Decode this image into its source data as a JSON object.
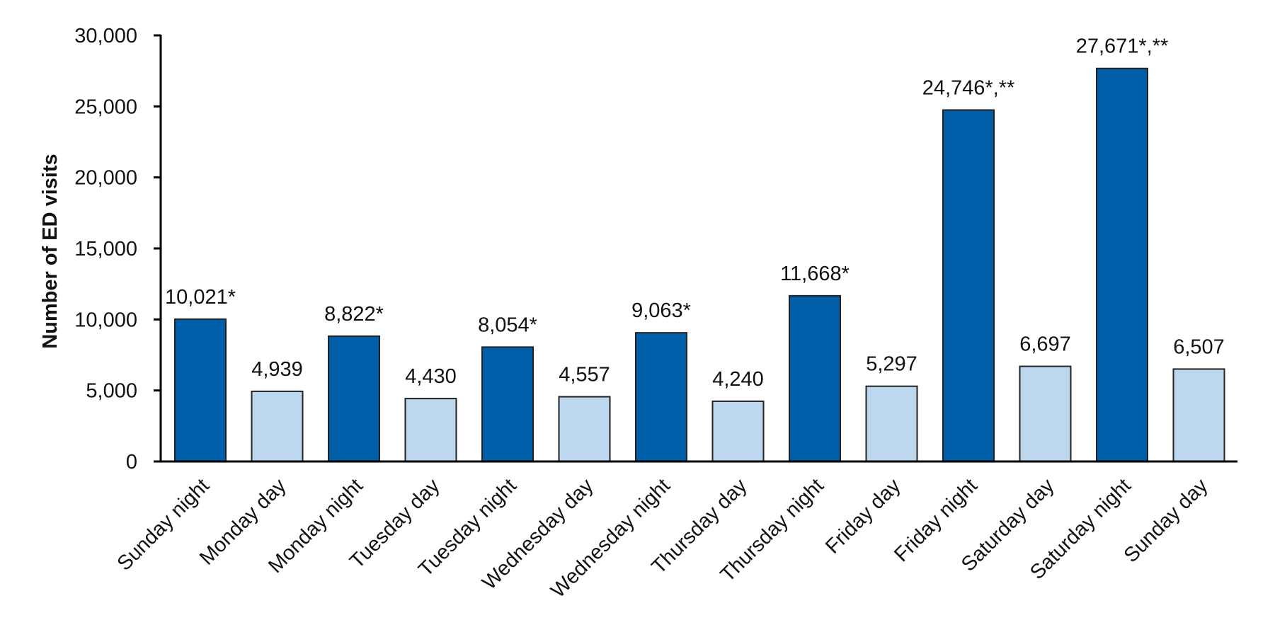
{
  "chart_data": {
    "type": "bar",
    "title": "",
    "xlabel": "",
    "ylabel": "Number of ED visits",
    "ylim": [
      0,
      30000
    ],
    "yticks": [
      0,
      5000,
      10000,
      15000,
      20000,
      25000,
      30000
    ],
    "ytick_labels": [
      "0",
      "5,000",
      "10,000",
      "15,000",
      "20,000",
      "25,000",
      "30,000"
    ],
    "grid": false,
    "legend": "none",
    "categories": [
      "Sunday night",
      "Monday day",
      "Monday night",
      "Tuesday day",
      "Tuesday night",
      "Wednesday day",
      "Wednesday night",
      "Thursday day",
      "Thursday night",
      "Friday day",
      "Friday night",
      "Saturday day",
      "Saturday night",
      "Sunday day"
    ],
    "values": [
      10021,
      4939,
      8822,
      4430,
      8054,
      4557,
      9063,
      4240,
      11668,
      5297,
      24746,
      6697,
      27671,
      6507
    ],
    "data_labels": [
      "10,021*",
      "4,939",
      "8,822*",
      "4,430",
      "8,054*",
      "4,557",
      "9,063*",
      "4,240",
      "11,668*",
      "5,297",
      "24,746*,**",
      "6,697",
      "27,671*,**",
      "6,507"
    ],
    "bar_kind": [
      "night",
      "day",
      "night",
      "day",
      "night",
      "day",
      "night",
      "day",
      "night",
      "day",
      "night",
      "day",
      "night",
      "day"
    ],
    "colors": {
      "night": "#005EA8",
      "day": "#BDD7EE",
      "outline": "#222222",
      "axis": "#000000"
    }
  }
}
